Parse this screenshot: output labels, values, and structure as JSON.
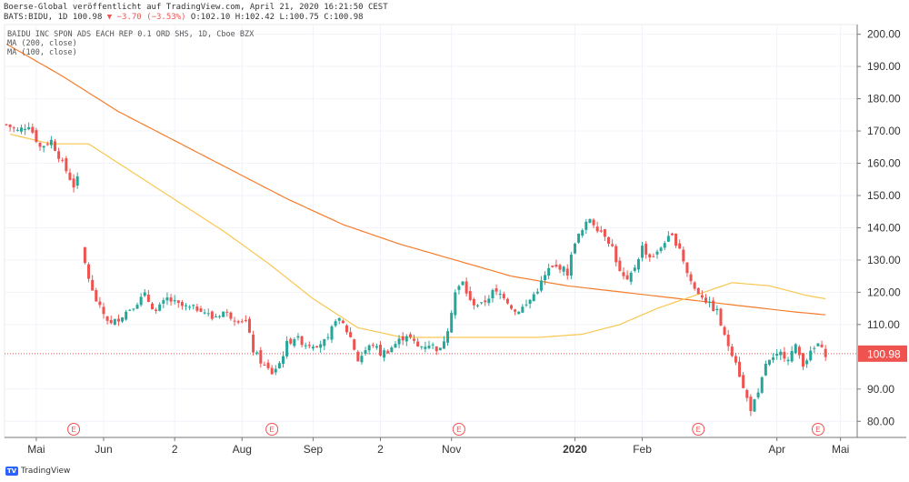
{
  "header": {
    "line1": "Boerse-Global veröffentlicht auf TradingView.com, April 21, 2020 16:21:50 CEST",
    "symbol": "BATS:BIDU, 1D 100.98",
    "change": "▼ −3.70 (−3.53%)",
    "ohlc": "O:102.10 H:102.42 L:100.75 C:100.98"
  },
  "legend": {
    "title": "BAIDU INC SPON ADS EACH REP 0.1 ORD SHS, 1D, Cboe BZX",
    "ma200": "MA (200, close)",
    "ma100": "MA (100, close)"
  },
  "colors": {
    "up": "#26a69a",
    "down": "#ef5350",
    "ma200": "#f57c2b",
    "ma100": "#f9c74f",
    "price_line": "#ef5350"
  },
  "footer": {
    "brand": "TradingView",
    "logo": "tradingview-logo-icon"
  },
  "chart_data": {
    "type": "candlestick",
    "title": "BAIDU INC SPON ADS EACH REP 0.1 ORD SHS, 1D, Cboe BZX",
    "ylim": [
      75,
      203
    ],
    "y_ticks": [
      "200.00",
      "190.00",
      "180.00",
      "170.00",
      "160.00",
      "150.00",
      "140.00",
      "130.00",
      "120.00",
      "110.00",
      "100.98",
      "90.00",
      "80.00"
    ],
    "x_ticks": [
      {
        "label": "Mai",
        "i": 8
      },
      {
        "label": "Jun",
        "i": 26
      },
      {
        "label": "2",
        "i": 45
      },
      {
        "label": "Aug",
        "i": 63
      },
      {
        "label": "Sep",
        "i": 82
      },
      {
        "label": "2",
        "i": 100
      },
      {
        "label": "Nov",
        "i": 119
      },
      {
        "label": "2020",
        "i": 152
      },
      {
        "label": "Feb",
        "i": 170
      },
      {
        "label": "Apr",
        "i": 206
      },
      {
        "label": "Mai",
        "i": 223
      }
    ],
    "last_price": 100.98,
    "last_price_label": "100.98",
    "events": [
      {
        "label": "E",
        "i": 18
      },
      {
        "label": "E",
        "i": 71
      },
      {
        "label": "E",
        "i": 121
      },
      {
        "label": "E",
        "i": 185
      },
      {
        "label": "E",
        "i": 217
      }
    ],
    "close_anchors": [
      [
        0,
        172
      ],
      [
        3,
        170
      ],
      [
        6,
        172
      ],
      [
        9,
        165
      ],
      [
        12,
        167
      ],
      [
        15,
        160
      ],
      [
        18,
        153
      ],
      [
        19,
        155
      ],
      [
        21,
        129
      ],
      [
        23,
        120
      ],
      [
        25,
        115
      ],
      [
        28,
        110
      ],
      [
        31,
        113
      ],
      [
        34,
        116
      ],
      [
        37,
        119
      ],
      [
        40,
        114
      ],
      [
        43,
        118
      ],
      [
        46,
        116
      ],
      [
        49,
        115
      ],
      [
        52,
        115
      ],
      [
        55,
        112
      ],
      [
        58,
        114
      ],
      [
        61,
        112
      ],
      [
        64,
        111
      ],
      [
        66,
        102
      ],
      [
        69,
        97
      ],
      [
        71,
        95
      ],
      [
        73,
        98
      ],
      [
        75,
        104
      ],
      [
        77,
        106
      ],
      [
        80,
        104
      ],
      [
        83,
        104
      ],
      [
        86,
        105
      ],
      [
        88,
        112
      ],
      [
        90,
        110
      ],
      [
        92,
        106
      ],
      [
        94,
        99
      ],
      [
        96,
        102
      ],
      [
        98,
        104
      ],
      [
        100,
        101
      ],
      [
        102,
        102
      ],
      [
        104,
        104
      ],
      [
        107,
        107
      ],
      [
        110,
        103
      ],
      [
        113,
        104
      ],
      [
        116,
        102
      ],
      [
        118,
        109
      ],
      [
        120,
        120
      ],
      [
        122,
        123
      ],
      [
        124,
        117
      ],
      [
        127,
        116
      ],
      [
        130,
        120
      ],
      [
        133,
        119
      ],
      [
        136,
        114
      ],
      [
        139,
        116
      ],
      [
        142,
        121
      ],
      [
        145,
        127
      ],
      [
        148,
        128
      ],
      [
        150,
        126
      ],
      [
        152,
        136
      ],
      [
        154,
        139
      ],
      [
        156,
        143
      ],
      [
        158,
        140
      ],
      [
        160,
        138
      ],
      [
        162,
        134
      ],
      [
        164,
        126
      ],
      [
        166,
        123
      ],
      [
        168,
        128
      ],
      [
        170,
        134
      ],
      [
        172,
        131
      ],
      [
        174,
        132
      ],
      [
        176,
        136
      ],
      [
        178,
        137
      ],
      [
        180,
        134
      ],
      [
        182,
        126
      ],
      [
        184,
        121
      ],
      [
        186,
        119
      ],
      [
        188,
        116
      ],
      [
        190,
        114
      ],
      [
        192,
        106
      ],
      [
        195,
        99
      ],
      [
        197,
        90
      ],
      [
        199,
        84
      ],
      [
        201,
        88
      ],
      [
        203,
        98
      ],
      [
        205,
        99
      ],
      [
        207,
        101
      ],
      [
        209,
        100
      ],
      [
        211,
        103
      ],
      [
        213,
        98
      ],
      [
        215,
        101
      ],
      [
        217,
        104
      ],
      [
        218,
        102
      ],
      [
        219,
        101
      ]
    ],
    "ma200_anchors": [
      [
        0,
        197
      ],
      [
        15,
        187
      ],
      [
        30,
        176
      ],
      [
        45,
        167
      ],
      [
        60,
        158
      ],
      [
        75,
        149
      ],
      [
        90,
        141
      ],
      [
        105,
        135
      ],
      [
        120,
        130
      ],
      [
        135,
        125
      ],
      [
        150,
        122
      ],
      [
        165,
        120
      ],
      [
        180,
        118
      ],
      [
        195,
        116
      ],
      [
        210,
        114
      ],
      [
        219,
        113
      ]
    ],
    "ma100": {
      "start": 1,
      "end": 219,
      "anchors": [
        [
          1,
          169
        ],
        [
          12,
          166
        ],
        [
          22,
          166
        ],
        [
          34,
          157
        ],
        [
          46,
          148
        ],
        [
          58,
          139
        ],
        [
          70,
          129
        ],
        [
          82,
          118
        ],
        [
          94,
          109
        ],
        [
          106,
          106
        ],
        [
          118,
          106
        ],
        [
          130,
          106
        ],
        [
          142,
          106
        ],
        [
          154,
          107
        ],
        [
          164,
          110
        ],
        [
          174,
          115
        ],
        [
          184,
          119
        ],
        [
          194,
          123
        ],
        [
          204,
          122
        ],
        [
          214,
          119
        ],
        [
          219,
          118
        ]
      ]
    }
  }
}
